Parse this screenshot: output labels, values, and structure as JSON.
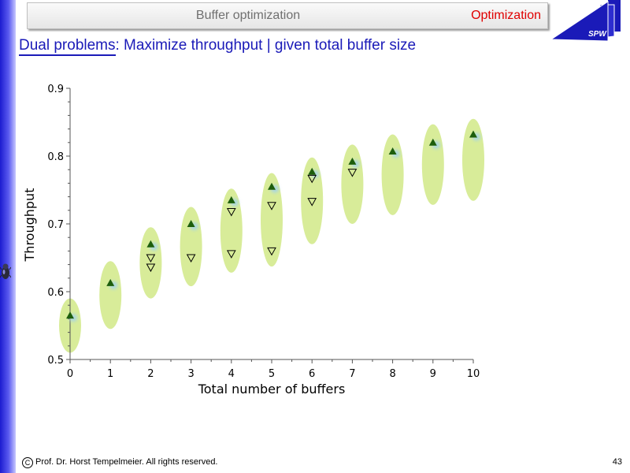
{
  "header": {
    "title": "Buffer optimization",
    "section": "Optimization",
    "logo_text": "SPW"
  },
  "slide": {
    "title_prefix": "Dual problems",
    "title_rest": ": Maximize throughput | given total buffer size"
  },
  "footer": {
    "copyright_symbol": "C",
    "text": "Prof. Dr. Horst Tempelmeier. All rights reserved.",
    "page_number": "43"
  },
  "colors": {
    "accent_blue": "#1a1ab8",
    "section_red": "#e00000",
    "ellipse_fill": "#d8ec99",
    "marker_green": "#1d5e0c",
    "marker_glow": "#a9d6e2"
  },
  "chart_data": {
    "type": "scatter",
    "xlabel": "Total number of buffers",
    "ylabel": "Throughput",
    "xlim": [
      0,
      10
    ],
    "ylim": [
      0.5,
      0.9
    ],
    "x_ticks": [
      "0",
      "1",
      "2",
      "3",
      "4",
      "5",
      "6",
      "7",
      "8",
      "9",
      "10"
    ],
    "y_ticks": [
      "0.5",
      "0.6",
      "0.7",
      "0.8",
      "0.9"
    ],
    "grid": false,
    "series": [
      {
        "marker": "filled-triangle-up",
        "x": [
          0,
          1,
          2,
          3,
          4,
          5,
          6,
          7,
          8,
          9,
          10
        ],
        "y": [
          0.565,
          0.613,
          0.67,
          0.7,
          0.735,
          0.755,
          0.777,
          0.792,
          0.807,
          0.82,
          0.832
        ]
      },
      {
        "marker": "open-triangle-down",
        "x": [
          2,
          2,
          3,
          4,
          4,
          5,
          5,
          6,
          6,
          7
        ],
        "y": [
          0.636,
          0.65,
          0.65,
          0.656,
          0.718,
          0.66,
          0.727,
          0.733,
          0.767,
          0.776
        ]
      }
    ],
    "ranges": [
      {
        "x": 0,
        "y_min": 0.51,
        "y_max": 0.59
      },
      {
        "x": 1,
        "y_min": 0.545,
        "y_max": 0.645
      },
      {
        "x": 2,
        "y_min": 0.59,
        "y_max": 0.695
      },
      {
        "x": 3,
        "y_min": 0.608,
        "y_max": 0.725
      },
      {
        "x": 4,
        "y_min": 0.628,
        "y_max": 0.752
      },
      {
        "x": 5,
        "y_min": 0.637,
        "y_max": 0.775
      },
      {
        "x": 6,
        "y_min": 0.67,
        "y_max": 0.798
      },
      {
        "x": 7,
        "y_min": 0.7,
        "y_max": 0.817
      },
      {
        "x": 8,
        "y_min": 0.713,
        "y_max": 0.832
      },
      {
        "x": 9,
        "y_min": 0.728,
        "y_max": 0.847
      },
      {
        "x": 10,
        "y_min": 0.734,
        "y_max": 0.855
      }
    ]
  }
}
